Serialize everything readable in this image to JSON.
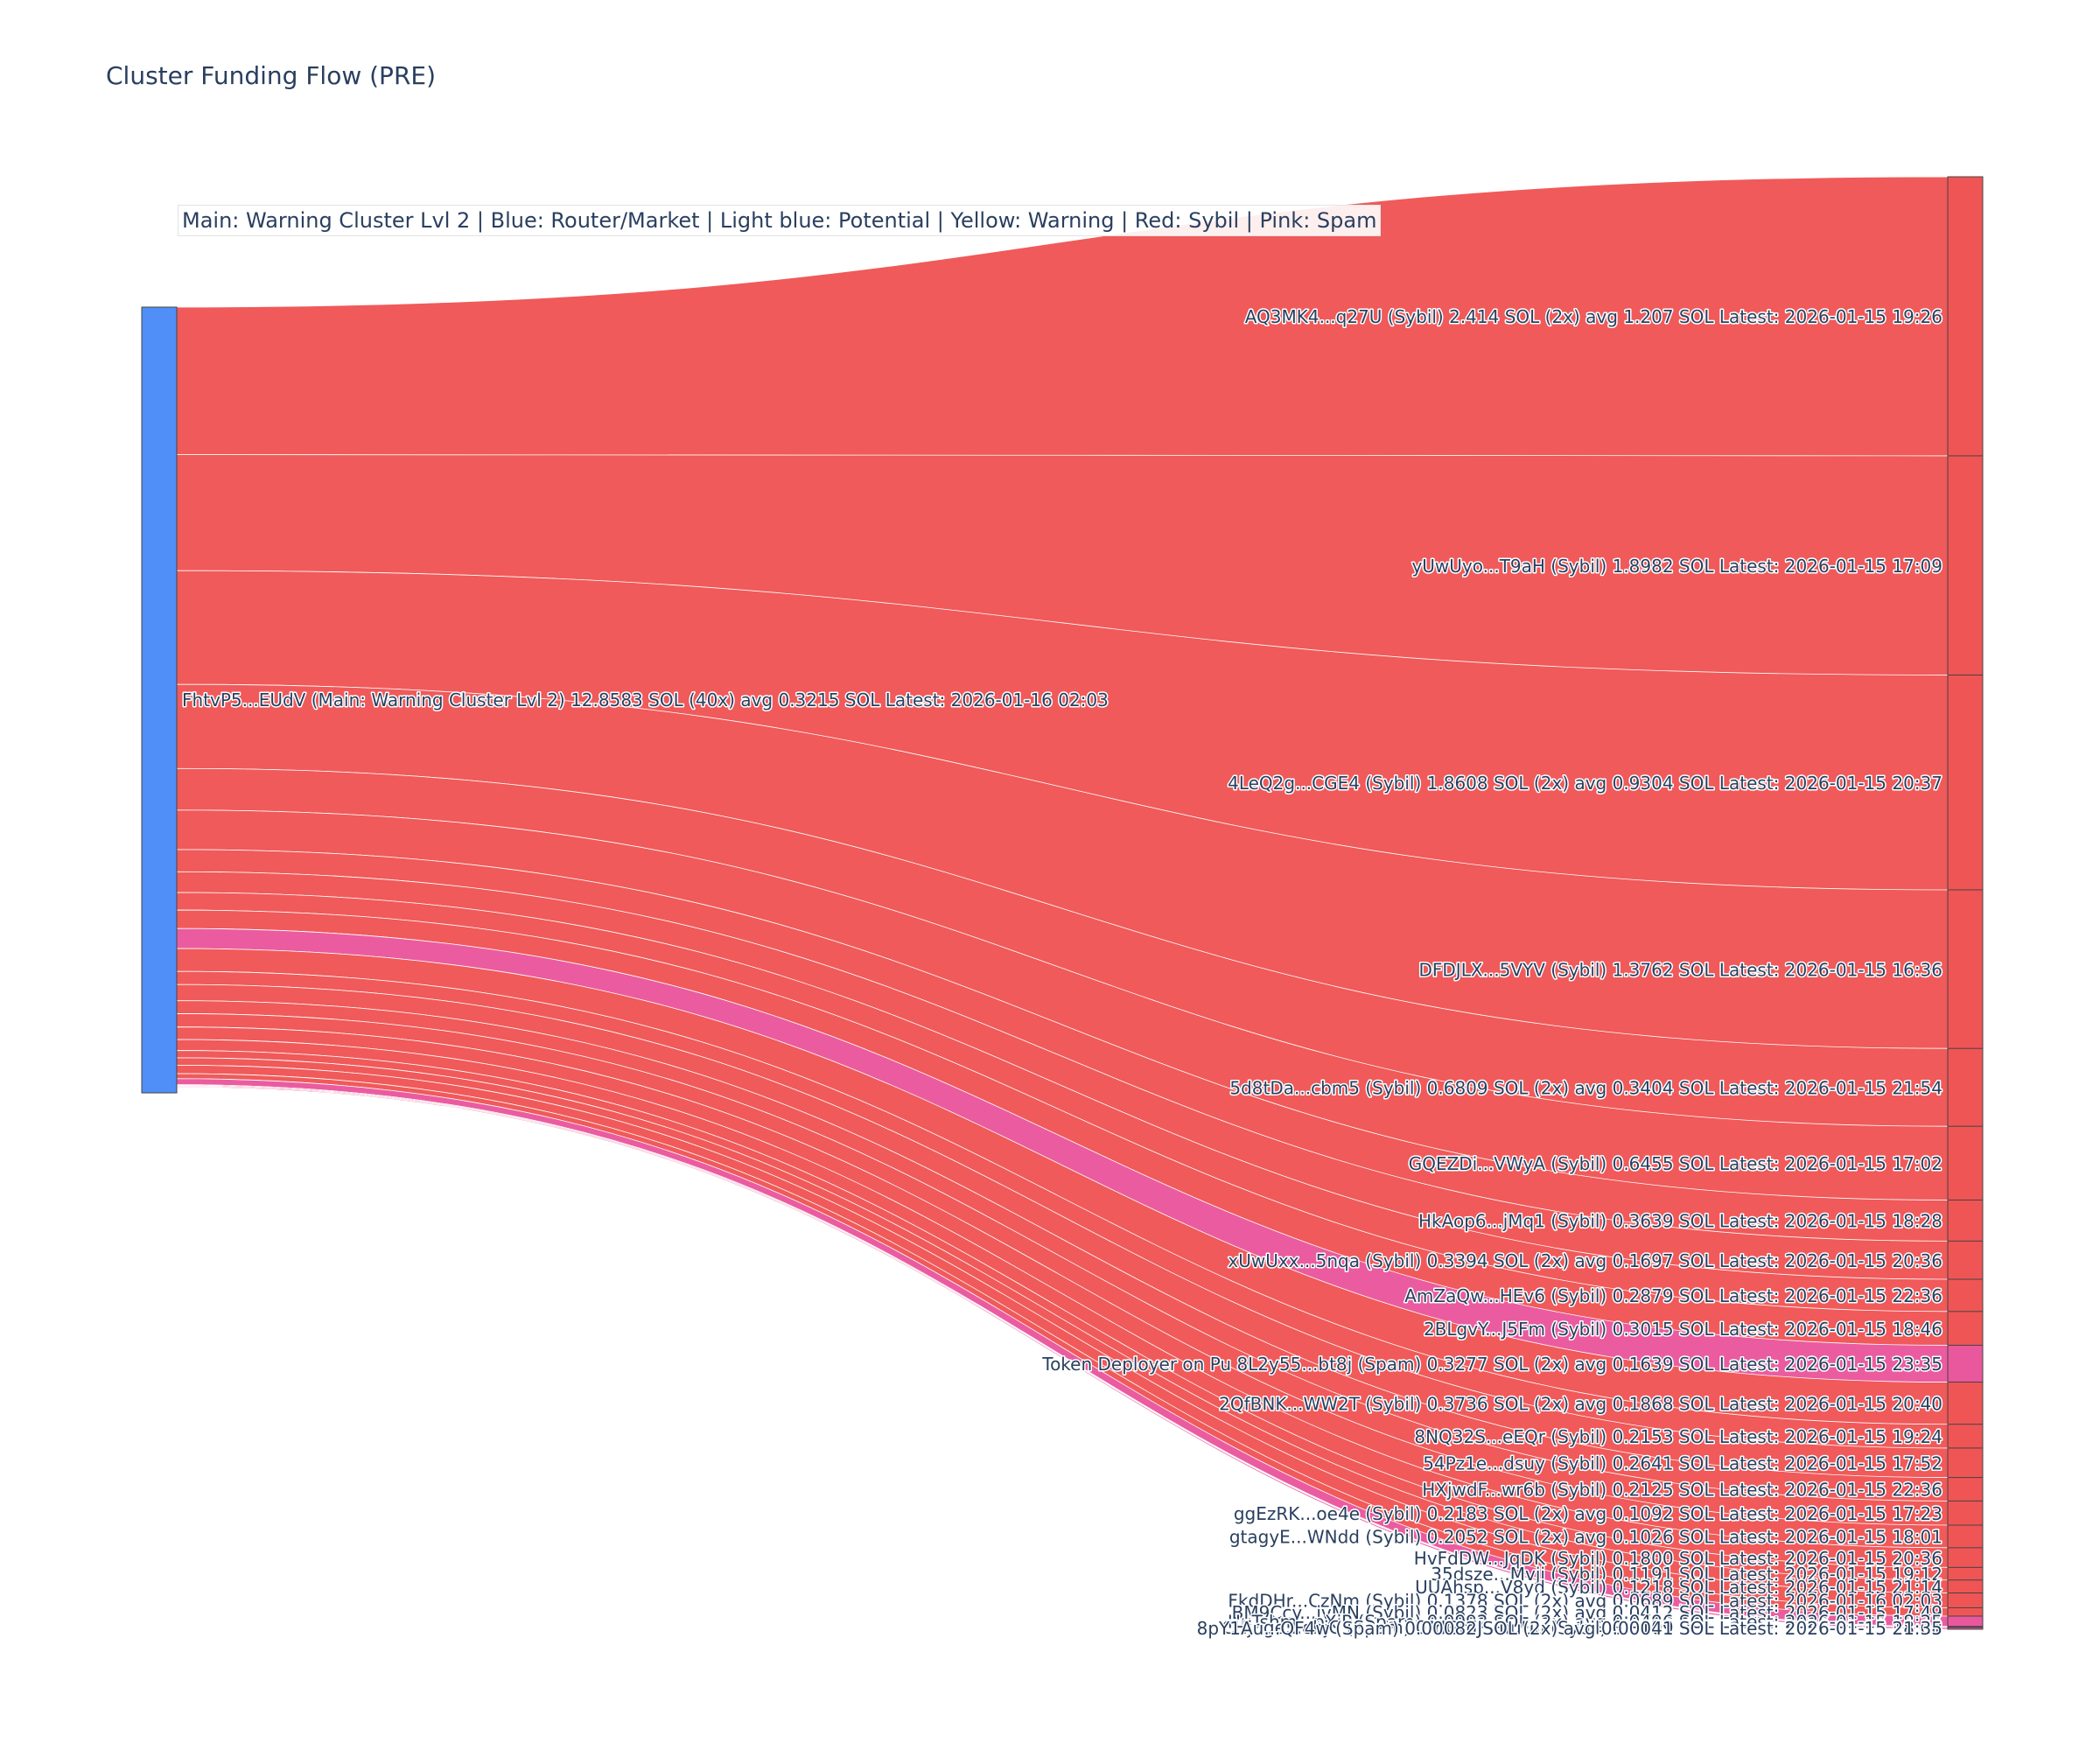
{
  "title": "Cluster Funding Flow (PRE)",
  "legend_text": "Main: Warning Cluster Lvl 2  |  Blue: Router/Market | Light blue: Potential | Yellow: Warning | Red: Sybil | Pink: Spam",
  "colors": {
    "router": "#4f8ff7",
    "sybil": "#ef5555",
    "spam": "#e9579c",
    "node_border": "#444444"
  },
  "chart_data": {
    "type": "sankey",
    "title": "Cluster Funding Flow (PRE)",
    "unit": "SOL",
    "source": {
      "label": "FhtvP5...EUdV (Main: Warning Cluster Lvl 2) 12.8583 SOL (40x) avg 0.3215 SOL Latest: 2026-01-16 02:03",
      "total": 12.8583,
      "category": "router"
    },
    "targets": [
      {
        "label": "AQ3MK4...q27U (Sybil) 2.414 SOL (2x) avg 1.207 SOL Latest: 2026-01-15 19:26",
        "value": 2.414,
        "category": "sybil"
      },
      {
        "label": "yUwUyo...T9aH (Sybil) 1.8982 SOL Latest: 2026-01-15 17:09",
        "value": 1.8982,
        "category": "sybil"
      },
      {
        "label": "4LeQ2g...CGE4 (Sybil) 1.8608 SOL (2x) avg 0.9304 SOL Latest: 2026-01-15 20:37",
        "value": 1.8608,
        "category": "sybil"
      },
      {
        "label": "DFDJLX...5VYV (Sybil) 1.3762 SOL Latest: 2026-01-15 16:36",
        "value": 1.3762,
        "category": "sybil"
      },
      {
        "label": "5d8tDa...cbm5 (Sybil) 0.6809 SOL (2x) avg 0.3404 SOL Latest: 2026-01-15 21:54",
        "value": 0.6809,
        "category": "sybil"
      },
      {
        "label": "GQEZDi...VWyA (Sybil) 0.6455 SOL Latest: 2026-01-15 17:02",
        "value": 0.6455,
        "category": "sybil"
      },
      {
        "label": "HkAop6...jMq1 (Sybil) 0.3639 SOL Latest: 2026-01-15 18:28",
        "value": 0.3639,
        "category": "sybil"
      },
      {
        "label": "xUwUxx...5nqa (Sybil) 0.3394 SOL (2x) avg 0.1697 SOL Latest: 2026-01-15 20:36",
        "value": 0.3394,
        "category": "sybil"
      },
      {
        "label": "AmZaQw...HEv6 (Sybil) 0.2879 SOL Latest: 2026-01-15 22:36",
        "value": 0.2879,
        "category": "sybil"
      },
      {
        "label": "2BLgvY...J5Fm (Sybil) 0.3015 SOL Latest: 2026-01-15 18:46",
        "value": 0.3015,
        "category": "sybil"
      },
      {
        "label": "Token Deployer on Pu 8L2y55...bt8j (Spam) 0.3277 SOL (2x) avg 0.1639 SOL Latest: 2026-01-15 23:35",
        "value": 0.3277,
        "category": "spam"
      },
      {
        "label": "2QfBNK...WW2T (Sybil) 0.3736 SOL (2x) avg 0.1868 SOL Latest: 2026-01-15 20:40",
        "value": 0.3736,
        "category": "sybil"
      },
      {
        "label": "8NQ32S...eEQr (Sybil) 0.2153 SOL Latest: 2026-01-15 19:24",
        "value": 0.2153,
        "category": "sybil"
      },
      {
        "label": "54Pz1e...dsuy (Sybil) 0.2641 SOL Latest: 2026-01-15 17:52",
        "value": 0.2641,
        "category": "sybil"
      },
      {
        "label": "HXjwdF...wr6b (Sybil) 0.2125 SOL Latest: 2026-01-15 22:36",
        "value": 0.2125,
        "category": "sybil"
      },
      {
        "label": "ggEzRK...oe4e (Sybil) 0.2183 SOL (2x) avg 0.1092 SOL Latest: 2026-01-15 17:23",
        "value": 0.2183,
        "category": "sybil"
      },
      {
        "label": "gtagyE...WNdd (Sybil) 0.2052 SOL (2x) avg 0.1026 SOL Latest: 2026-01-15 18:01",
        "value": 0.2052,
        "category": "sybil"
      },
      {
        "label": "HvFdDW...JqDK (Sybil) 0.1800 SOL Latest: 2026-01-15 20:36",
        "value": 0.18,
        "category": "sybil"
      },
      {
        "label": "35dsze...Mvji (Sybil) 0.1191 SOL Latest: 2026-01-15 19:12",
        "value": 0.1191,
        "category": "sybil"
      },
      {
        "label": "UUAhsp...V8yd (Sybil) 0.1218 SOL Latest: 2026-01-15 21:14",
        "value": 0.1218,
        "category": "sybil"
      },
      {
        "label": "FkdDHr...CzNm (Sybil) 0.1378 SOL (2x) avg 0.0689 SOL Latest: 2026-01-16 02:03",
        "value": 0.1378,
        "category": "sybil"
      },
      {
        "label": "BM9Ccy...jvMN (Sybil) 0.0823 SOL (2x) avg 0.0412 SOL Latest: 2026-01-15 17:49",
        "value": 0.0823,
        "category": "sybil"
      },
      {
        "label": "HuTshm...pXiP (Spam) 0.0992 SOL (2x) avg 0.0496 SOL Latest: 2026-01-15 18:25",
        "value": 0.0992,
        "category": "spam"
      },
      {
        "label": "CHjnge...ehjC (Spam) 0.0016 SOL (2x) avg 0.00079 SOL Latest: 2026-01-15 18:31",
        "value": 0.0016,
        "category": "spam"
      },
      {
        "label": "7dGrdJ...uuUu (Sybil) 0.0101 SOL Latest: 2026-01-15 18:08",
        "value": 0.0101,
        "category": "sybil"
      },
      {
        "label": "8pY1Au...QF4w (Spam) 0.00082 SOL (2x) avg 0.00041 SOL Latest: 2026-01-15 21:35",
        "value": 0.00082,
        "category": "spam"
      }
    ]
  }
}
